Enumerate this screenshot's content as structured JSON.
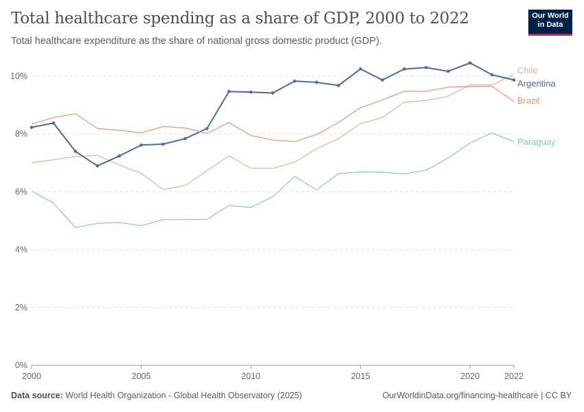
{
  "header": {
    "title": "Total healthcare spending as a share of GDP, 2000 to 2022",
    "subtitle": "Total healthcare expenditure as the share of national gross domestic product (GDP).",
    "logo_text": "Our World in Data"
  },
  "footer": {
    "source_label": "Data source:",
    "source_text": "World Health Organization - Global Health Observatory (2025)",
    "credit": "OurWorldinData.org/financing-healthcare | CC BY"
  },
  "chart_data": {
    "type": "line",
    "title": "Total healthcare spending as a share of GDP, 2000 to 2022",
    "x": [
      2000,
      2001,
      2002,
      2003,
      2004,
      2005,
      2006,
      2007,
      2008,
      2009,
      2010,
      2011,
      2012,
      2013,
      2014,
      2015,
      2016,
      2017,
      2018,
      2019,
      2020,
      2021,
      2022
    ],
    "xticks": [
      "2000",
      "2005",
      "2010",
      "2015",
      "2020",
      "2022"
    ],
    "xtick_values": [
      2000,
      2005,
      2010,
      2015,
      2020,
      2022
    ],
    "yticks": [
      "0%",
      "2%",
      "4%",
      "6%",
      "8%",
      "10%"
    ],
    "ytick_values": [
      0,
      2,
      4,
      6,
      8,
      10
    ],
    "ylim": [
      0,
      10.5
    ],
    "grid": "horizontal dashed",
    "legend": "right, inline labels",
    "series": [
      {
        "name": "Chile",
        "color": "#d2b496",
        "markers": false,
        "values": [
          7.01,
          7.11,
          7.22,
          7.26,
          6.93,
          6.64,
          6.08,
          6.22,
          6.73,
          7.25,
          6.82,
          6.81,
          7.03,
          7.49,
          7.84,
          8.36,
          8.57,
          9.1,
          9.16,
          9.31,
          9.7,
          9.7,
          10.06
        ]
      },
      {
        "name": "Argentina",
        "color": "#4c6a9c",
        "markers": true,
        "values": [
          8.23,
          8.38,
          7.4,
          6.9,
          7.24,
          7.62,
          7.65,
          7.84,
          8.19,
          9.47,
          9.45,
          9.42,
          9.83,
          9.79,
          9.68,
          10.25,
          9.87,
          10.25,
          10.3,
          10.17,
          10.46,
          10.05,
          9.87
        ]
      },
      {
        "name": "Brazil",
        "color": "#e0947a",
        "markers": false,
        "values": [
          8.34,
          8.57,
          8.7,
          8.19,
          8.13,
          8.04,
          8.26,
          8.21,
          8.02,
          8.4,
          7.95,
          7.79,
          7.74,
          7.98,
          8.4,
          8.91,
          9.18,
          9.48,
          9.48,
          9.62,
          9.64,
          9.65,
          9.13
        ]
      },
      {
        "name": "Paraguay",
        "color": "#8fc3ae",
        "markers": false,
        "values": [
          6.03,
          5.61,
          4.77,
          4.91,
          4.94,
          4.83,
          5.04,
          5.04,
          5.05,
          5.53,
          5.46,
          5.83,
          6.53,
          6.07,
          6.63,
          6.69,
          6.68,
          6.62,
          6.75,
          7.17,
          7.69,
          8.04,
          7.74
        ]
      }
    ]
  }
}
